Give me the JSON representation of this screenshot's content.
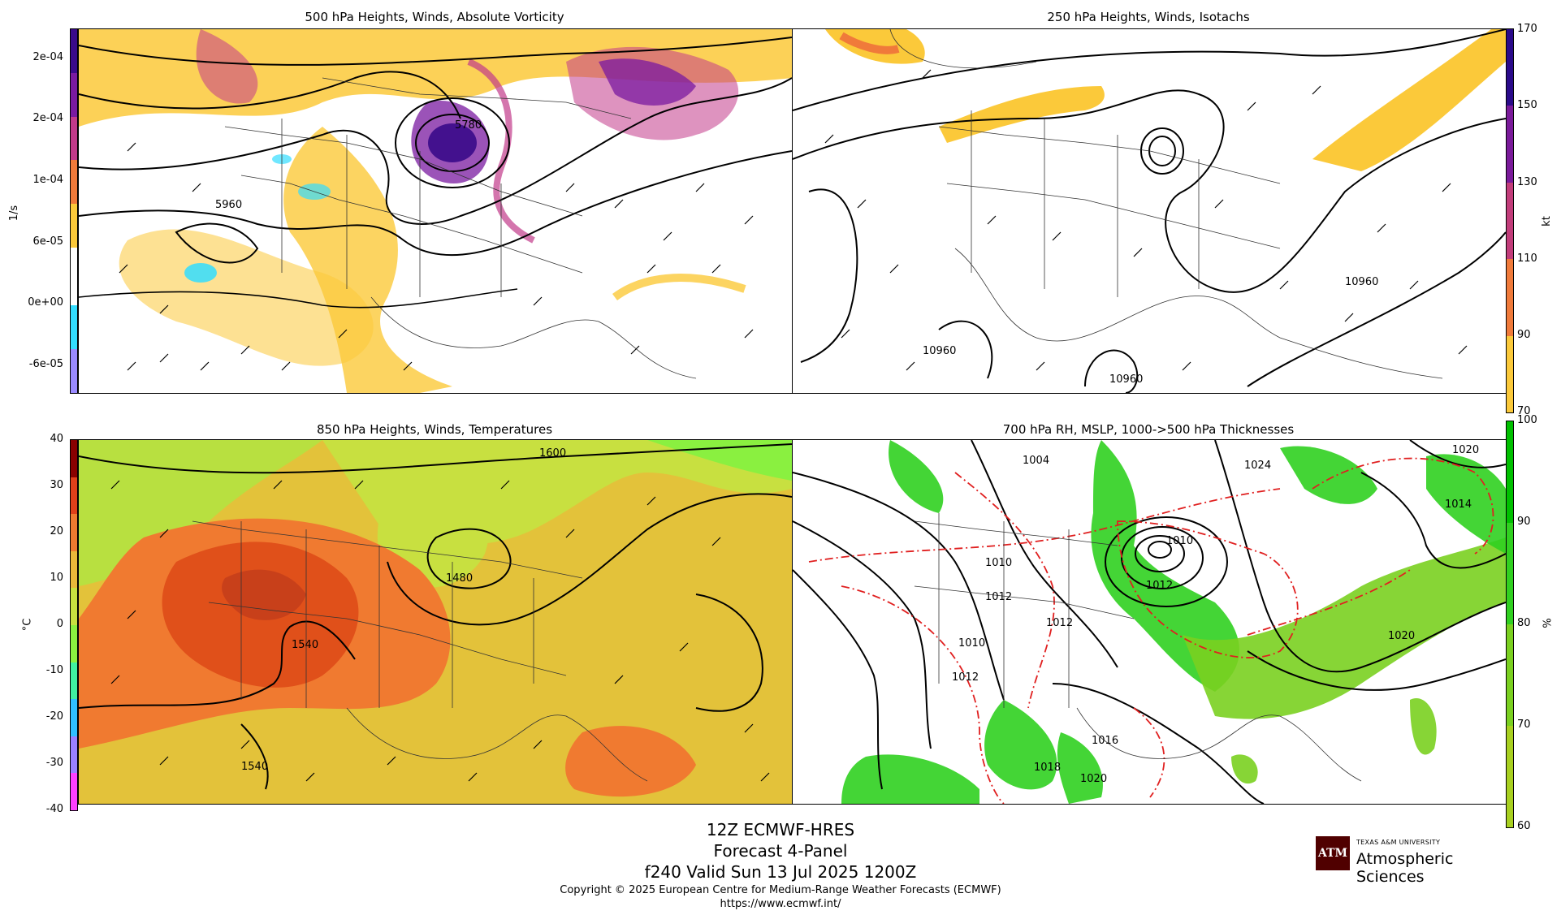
{
  "panels": [
    {
      "title": "500 hPa Heights, Winds, Absolute Vorticity",
      "labels": [
        "5960",
        "5780"
      ]
    },
    {
      "title": "250 hPa Heights, Winds, Isotachs",
      "labels": [
        "10960",
        "10960",
        "10960"
      ]
    },
    {
      "title": "850 hPa Heights, Winds, Temperatures",
      "labels": [
        "1600",
        "1480",
        "1540",
        "1540"
      ]
    },
    {
      "title": "700 hPa RH, MSLP, 1000->500 hPa Thicknesses",
      "labels": [
        "1004",
        "1024",
        "1020",
        "1010",
        "1010",
        "1012",
        "1012",
        "1012",
        "1010",
        "1012",
        "1016",
        "1018",
        "1020",
        "1014",
        "1020"
      ]
    }
  ],
  "colorbars": {
    "vorticity": {
      "unit": "1/s",
      "ticks": [
        "2e-04",
        "2e-04",
        "1e-04",
        "6e-05",
        "0e+00",
        "-6e-05"
      ],
      "colors": [
        "#3a0a8a",
        "#7a1aa0",
        "#c23a8a",
        "#f07a3a",
        "#fbc93a",
        "#ffffff",
        "#33ddff",
        "#9a8aff"
      ]
    },
    "isotachs": {
      "unit": "kt",
      "ticks": [
        "170",
        "150",
        "130",
        "110",
        "90",
        "70"
      ],
      "colors": [
        "#2a0a8a",
        "#7a1a9a",
        "#c23c7a",
        "#f07a3a",
        "#fbc93a"
      ]
    },
    "temperature": {
      "unit": "°C",
      "ticks": [
        "40",
        "30",
        "20",
        "10",
        "0",
        "-10",
        "-20",
        "-30",
        "-40"
      ],
      "colors": [
        "#8a0000",
        "#e0401a",
        "#f07a30",
        "#e9b83a",
        "#c8e040",
        "#8af040",
        "#40f0a0",
        "#30c0ff",
        "#9a80ff",
        "#ff40ff"
      ]
    },
    "rh": {
      "unit": "%",
      "ticks": [
        "100",
        "90",
        "80",
        "70",
        "60"
      ],
      "colors": [
        "#00c000",
        "#30d020",
        "#7ad020",
        "#a8d020"
      ]
    }
  },
  "footer": {
    "line1": "12Z ECMWF-HRES",
    "line2": "Forecast 4-Panel",
    "line3": "f240 Valid Sun 13 Jul 2025 1200Z",
    "copyright": "Copyright © 2025 European Centre for Medium-Range Weather Forecasts (ECMWF)",
    "url": "https://www.ecmwf.int/"
  },
  "logo": {
    "mark": "ATM",
    "university": "TEXAS A&M UNIVERSITY",
    "department": "Atmospheric Sciences"
  }
}
